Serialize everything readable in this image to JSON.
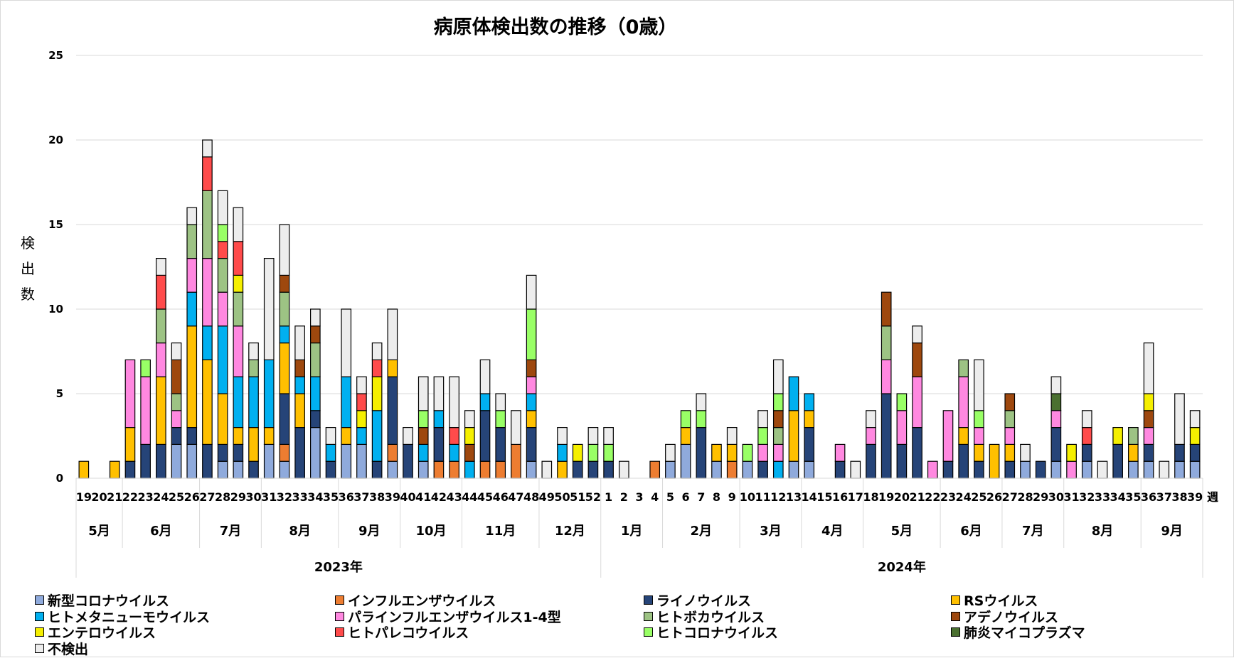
{
  "chart_data": {
    "type": "bar",
    "stacked": true,
    "title": "病原体検出数の推移（0歳）",
    "ylabel": "検出数",
    "xlabel": "週",
    "ylim": [
      0,
      25
    ],
    "yticks": [
      0,
      5,
      10,
      15,
      20,
      25
    ],
    "grid": true,
    "legend_position": "bottom",
    "series": [
      {
        "key": "covid",
        "name": "新型コロナウイルス",
        "color": "#8FAADC"
      },
      {
        "key": "flu",
        "name": "インフルエンザウイルス",
        "color": "#ED7D31"
      },
      {
        "key": "rhino",
        "name": "ライノウイルス",
        "color": "#264478"
      },
      {
        "key": "rs",
        "name": "RSウイルス",
        "color": "#FFC000"
      },
      {
        "key": "hmpv",
        "name": "ヒトメタニューモウイルス",
        "color": "#00B0F0"
      },
      {
        "key": "para",
        "name": "パラインフルエンザウイルス1-4型",
        "color": "#FF88E0"
      },
      {
        "key": "boca",
        "name": "ヒトボカウイルス",
        "color": "#9DC384"
      },
      {
        "key": "adeno",
        "name": "アデノウイルス",
        "color": "#9E480E"
      },
      {
        "key": "entero",
        "name": "エンテロウイルス",
        "color": "#F5EF00"
      },
      {
        "key": "parecho",
        "name": "ヒトパレコウイルス",
        "color": "#FF4B4B"
      },
      {
        "key": "hcorona",
        "name": "ヒトコロナウイルス",
        "color": "#99FF66"
      },
      {
        "key": "myco",
        "name": "肺炎マイコプラズマ",
        "color": "#4A7030"
      },
      {
        "key": "none",
        "name": "不検出",
        "color": "#EDEDED"
      }
    ],
    "years": [
      {
        "label": "2023年",
        "months": [
          {
            "label": "5月",
            "weeks": [
              "19",
              "20",
              "21"
            ]
          },
          {
            "label": "6月",
            "weeks": [
              "22",
              "23",
              "24",
              "25",
              "26"
            ]
          },
          {
            "label": "7月",
            "weeks": [
              "27",
              "28",
              "29",
              "30"
            ]
          },
          {
            "label": "8月",
            "weeks": [
              "31",
              "32",
              "33",
              "34",
              "35"
            ]
          },
          {
            "label": "9月",
            "weeks": [
              "36",
              "37",
              "38",
              "39"
            ]
          },
          {
            "label": "10月",
            "weeks": [
              "40",
              "41",
              "42",
              "43"
            ]
          },
          {
            "label": "11月",
            "weeks": [
              "44",
              "45",
              "46",
              "47",
              "48"
            ]
          },
          {
            "label": "12月",
            "weeks": [
              "49",
              "50",
              "51",
              "52"
            ]
          }
        ]
      },
      {
        "label": "2024年",
        "months": [
          {
            "label": "1月",
            "weeks": [
              "1",
              "2",
              "3",
              "4"
            ]
          },
          {
            "label": "2月",
            "weeks": [
              "5",
              "6",
              "7",
              "8",
              "9"
            ]
          },
          {
            "label": "3月",
            "weeks": [
              "10",
              "11",
              "12",
              "13"
            ]
          },
          {
            "label": "4月",
            "weeks": [
              "14",
              "15",
              "16",
              "17"
            ]
          },
          {
            "label": "5月",
            "weeks": [
              "18",
              "19",
              "20",
              "21",
              "22"
            ]
          },
          {
            "label": "6月",
            "weeks": [
              "23",
              "24",
              "25",
              "26"
            ]
          },
          {
            "label": "7月",
            "weeks": [
              "27",
              "28",
              "29",
              "30"
            ]
          },
          {
            "label": "8月",
            "weeks": [
              "31",
              "32",
              "33",
              "34",
              "35"
            ]
          },
          {
            "label": "9月",
            "weeks": [
              "36",
              "37",
              "38",
              "39"
            ]
          }
        ]
      }
    ],
    "data": [
      {
        "year": "2023",
        "week": "19",
        "rs": 1
      },
      {
        "year": "2023",
        "week": "20"
      },
      {
        "year": "2023",
        "week": "21",
        "rs": 1
      },
      {
        "year": "2023",
        "week": "22",
        "rhino": 1,
        "rs": 2,
        "para": 4
      },
      {
        "year": "2023",
        "week": "23",
        "rhino": 2,
        "para": 4,
        "hcorona": 1
      },
      {
        "year": "2023",
        "week": "24",
        "rhino": 2,
        "rs": 4,
        "para": 2,
        "boca": 2,
        "parecho": 2,
        "none": 1
      },
      {
        "year": "2023",
        "week": "25",
        "covid": 2,
        "rhino": 1,
        "para": 1,
        "boca": 1,
        "adeno": 2,
        "none": 1
      },
      {
        "year": "2023",
        "week": "26",
        "covid": 2,
        "rhino": 1,
        "rs": 6,
        "hmpv": 2,
        "para": 2,
        "boca": 2,
        "none": 1
      },
      {
        "year": "2023",
        "week": "27",
        "rhino": 2,
        "rs": 5,
        "hmpv": 2,
        "para": 4,
        "boca": 4,
        "parecho": 2,
        "none": 1
      },
      {
        "year": "2023",
        "week": "28",
        "covid": 1,
        "rhino": 1,
        "rs": 3,
        "hmpv": 4,
        "para": 2,
        "boca": 2,
        "parecho": 1,
        "hcorona": 1,
        "none": 2
      },
      {
        "year": "2023",
        "week": "29",
        "covid": 1,
        "rhino": 1,
        "rs": 1,
        "hmpv": 3,
        "para": 3,
        "boca": 2,
        "entero": 1,
        "parecho": 2,
        "none": 2
      },
      {
        "year": "2023",
        "week": "30",
        "rhino": 1,
        "rs": 2,
        "hmpv": 3,
        "boca": 1,
        "none": 1
      },
      {
        "year": "2023",
        "week": "31",
        "covid": 2,
        "rs": 1,
        "hmpv": 4,
        "none": 6
      },
      {
        "year": "2023",
        "week": "32",
        "covid": 1,
        "flu": 1,
        "rhino": 3,
        "rs": 3,
        "hmpv": 1,
        "boca": 2,
        "adeno": 1,
        "none": 3
      },
      {
        "year": "2023",
        "week": "33",
        "rhino": 3,
        "rs": 2,
        "hmpv": 1,
        "adeno": 1,
        "none": 2
      },
      {
        "year": "2023",
        "week": "34",
        "covid": 3,
        "rhino": 1,
        "hmpv": 2,
        "boca": 2,
        "adeno": 1,
        "none": 1
      },
      {
        "year": "2023",
        "week": "35",
        "rhino": 1,
        "hmpv": 1,
        "none": 1
      },
      {
        "year": "2023",
        "week": "36",
        "covid": 2,
        "rs": 1,
        "hmpv": 3,
        "none": 4
      },
      {
        "year": "2023",
        "week": "37",
        "covid": 2,
        "hmpv": 1,
        "entero": 1,
        "parecho": 1,
        "none": 1
      },
      {
        "year": "2023",
        "week": "38",
        "rhino": 1,
        "hmpv": 3,
        "entero": 2,
        "parecho": 1,
        "none": 1
      },
      {
        "year": "2023",
        "week": "39",
        "covid": 1,
        "flu": 1,
        "rhino": 4,
        "rs": 1,
        "none": 3
      },
      {
        "year": "2023",
        "week": "40",
        "rhino": 2,
        "none": 1
      },
      {
        "year": "2023",
        "week": "41",
        "covid": 1,
        "hmpv": 1,
        "adeno": 1,
        "hcorona": 1,
        "none": 2
      },
      {
        "year": "2023",
        "week": "42",
        "flu": 1,
        "rhino": 2,
        "hmpv": 1,
        "none": 2
      },
      {
        "year": "2023",
        "week": "43",
        "flu": 1,
        "hmpv": 1,
        "parecho": 1,
        "none": 3
      },
      {
        "year": "2023",
        "week": "44",
        "hmpv": 1,
        "adeno": 1,
        "entero": 1,
        "none": 1
      },
      {
        "year": "2023",
        "week": "45",
        "flu": 1,
        "rhino": 3,
        "hmpv": 1,
        "none": 2
      },
      {
        "year": "2023",
        "week": "46",
        "flu": 1,
        "rhino": 2,
        "hcorona": 1,
        "none": 1
      },
      {
        "year": "2023",
        "week": "47",
        "flu": 2,
        "none": 2
      },
      {
        "year": "2023",
        "week": "48",
        "covid": 1,
        "rhino": 2,
        "rs": 1,
        "hmpv": 1,
        "para": 1,
        "adeno": 1,
        "hcorona": 3,
        "none": 2
      },
      {
        "year": "2023",
        "week": "49",
        "none": 1
      },
      {
        "year": "2023",
        "week": "50",
        "rs": 1,
        "hmpv": 1,
        "none": 1
      },
      {
        "year": "2023",
        "week": "51",
        "rhino": 1,
        "entero": 1
      },
      {
        "year": "2023",
        "week": "52",
        "rhino": 1,
        "hcorona": 1,
        "none": 1
      },
      {
        "year": "2024",
        "week": "1",
        "rhino": 1,
        "hcorona": 1,
        "none": 1
      },
      {
        "year": "2024",
        "week": "2",
        "none": 1
      },
      {
        "year": "2024",
        "week": "3"
      },
      {
        "year": "2024",
        "week": "4",
        "flu": 1
      },
      {
        "year": "2024",
        "week": "5",
        "covid": 1,
        "none": 1
      },
      {
        "year": "2024",
        "week": "6",
        "covid": 2,
        "rs": 1,
        "hcorona": 1
      },
      {
        "year": "2024",
        "week": "7",
        "rhino": 3,
        "hcorona": 1,
        "none": 1
      },
      {
        "year": "2024",
        "week": "8",
        "covid": 1,
        "rs": 1
      },
      {
        "year": "2024",
        "week": "9",
        "flu": 1,
        "rs": 1,
        "none": 1
      },
      {
        "year": "2024",
        "week": "10",
        "covid": 1,
        "hcorona": 1
      },
      {
        "year": "2024",
        "week": "11",
        "rhino": 1,
        "para": 1,
        "hcorona": 1,
        "none": 1
      },
      {
        "year": "2024",
        "week": "12",
        "hmpv": 1,
        "para": 1,
        "boca": 1,
        "adeno": 1,
        "hcorona": 1,
        "none": 2
      },
      {
        "year": "2024",
        "week": "13",
        "covid": 1,
        "rs": 3,
        "hmpv": 2
      },
      {
        "year": "2024",
        "week": "14",
        "covid": 1,
        "rhino": 2,
        "rs": 1,
        "hmpv": 1
      },
      {
        "year": "2024",
        "week": "15"
      },
      {
        "year": "2024",
        "week": "16",
        "rhino": 1,
        "para": 1
      },
      {
        "year": "2024",
        "week": "17",
        "none": 1
      },
      {
        "year": "2024",
        "week": "18",
        "rhino": 2,
        "para": 1,
        "none": 1
      },
      {
        "year": "2024",
        "week": "19",
        "rhino": 5,
        "para": 2,
        "boca": 2,
        "adeno": 2
      },
      {
        "year": "2024",
        "week": "20",
        "rhino": 2,
        "para": 2,
        "hcorona": 1
      },
      {
        "year": "2024",
        "week": "21",
        "rhino": 3,
        "para": 3,
        "adeno": 2,
        "none": 1
      },
      {
        "year": "2024",
        "week": "22",
        "para": 1
      },
      {
        "year": "2024",
        "week": "23",
        "rhino": 1,
        "para": 3
      },
      {
        "year": "2024",
        "week": "24",
        "rhino": 2,
        "rs": 1,
        "para": 3,
        "boca": 1
      },
      {
        "year": "2024",
        "week": "25",
        "rhino": 1,
        "rs": 1,
        "para": 1,
        "hcorona": 1,
        "none": 3
      },
      {
        "year": "2024",
        "week": "26",
        "rs": 2
      },
      {
        "year": "2024",
        "week": "27",
        "rhino": 1,
        "rs": 1,
        "para": 1,
        "boca": 1,
        "adeno": 1
      },
      {
        "year": "2024",
        "week": "28",
        "covid": 1,
        "none": 1
      },
      {
        "year": "2024",
        "week": "29",
        "rhino": 1
      },
      {
        "year": "2024",
        "week": "30",
        "covid": 1,
        "rhino": 2,
        "para": 1,
        "myco": 1,
        "none": 1
      },
      {
        "year": "2024",
        "week": "31",
        "para": 1,
        "entero": 1
      },
      {
        "year": "2024",
        "week": "32",
        "covid": 1,
        "rhino": 1,
        "parecho": 1,
        "none": 1
      },
      {
        "year": "2024",
        "week": "33",
        "none": 1
      },
      {
        "year": "2024",
        "week": "34",
        "rhino": 2,
        "entero": 1
      },
      {
        "year": "2024",
        "week": "35",
        "covid": 1,
        "rs": 1,
        "boca": 1
      },
      {
        "year": "2024",
        "week": "36",
        "covid": 1,
        "rhino": 1,
        "para": 1,
        "adeno": 1,
        "entero": 1,
        "none": 3
      },
      {
        "year": "2024",
        "week": "37",
        "none": 1
      },
      {
        "year": "2024",
        "week": "38",
        "covid": 1,
        "rhino": 1,
        "none": 3
      },
      {
        "year": "2024",
        "week": "39",
        "covid": 1,
        "rhino": 1,
        "entero": 1,
        "none": 1
      }
    ]
  },
  "legend_order": [
    "covid",
    "flu",
    "rhino",
    "rs",
    "hmpv",
    "para",
    "boca",
    "adeno",
    "entero",
    "parecho",
    "hcorona",
    "myco",
    "none"
  ]
}
